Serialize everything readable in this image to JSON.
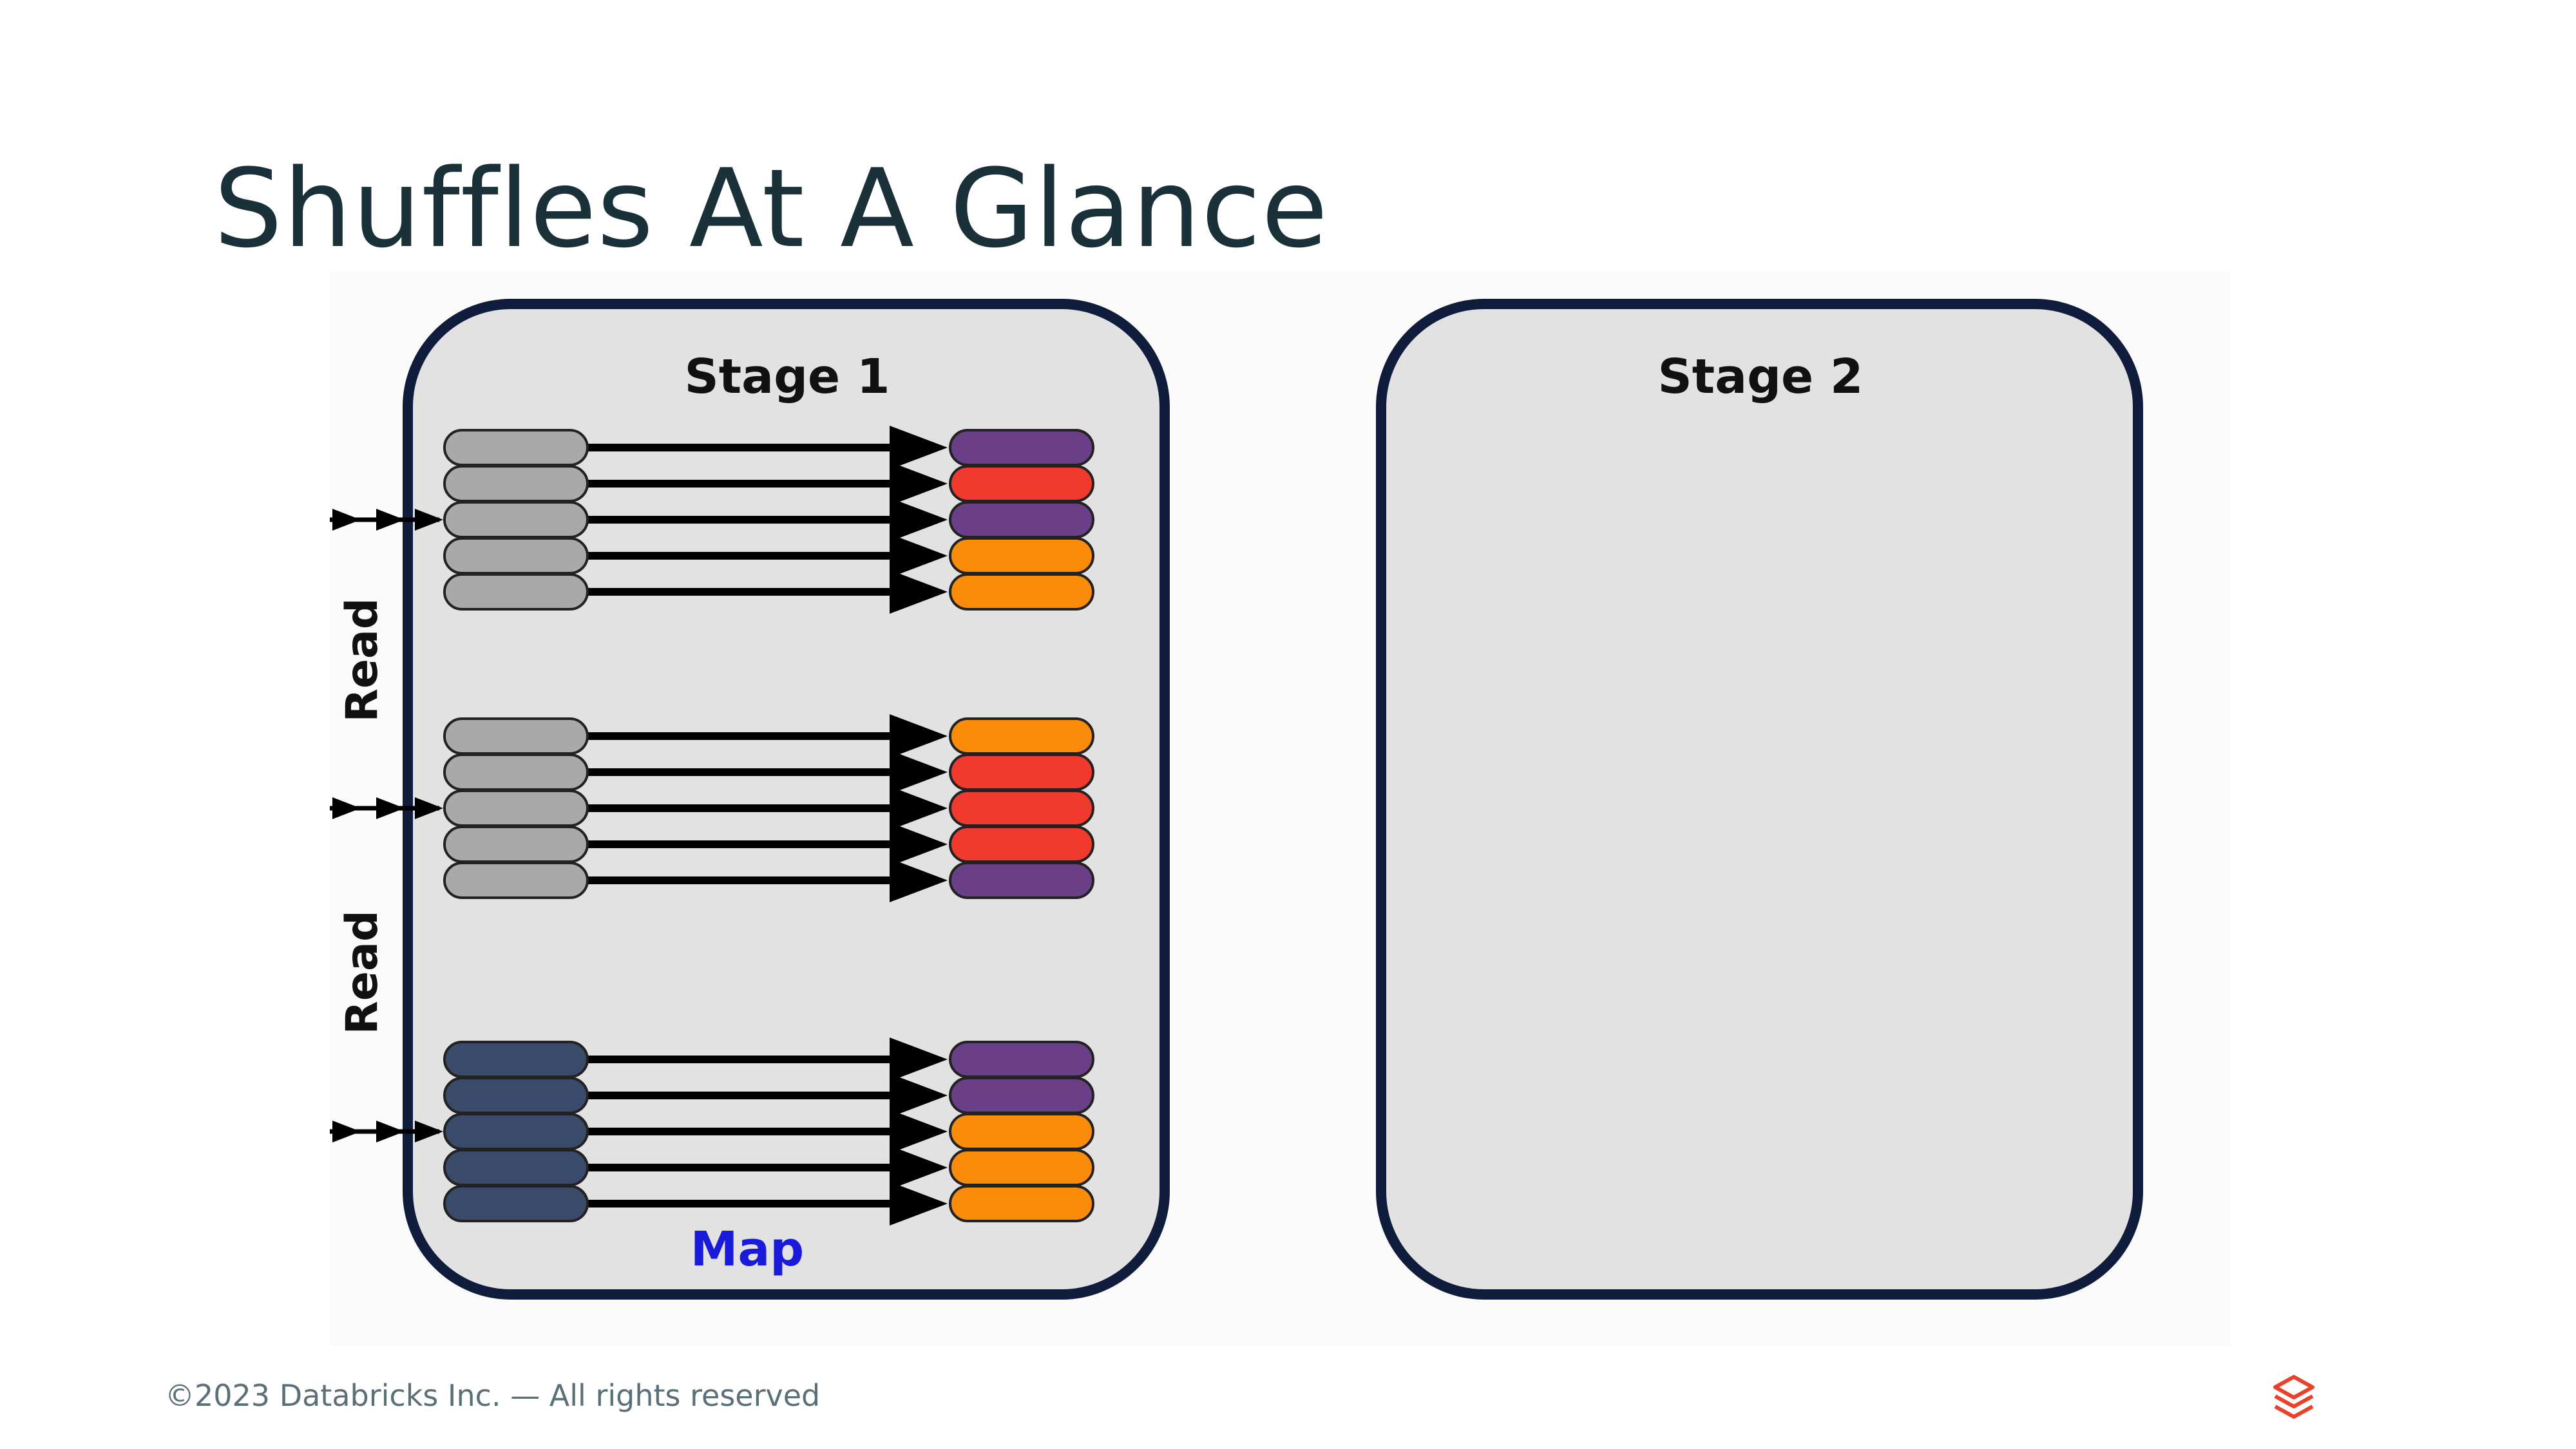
{
  "slide": {
    "title": "Shuffles At A Glance",
    "footer": "©2023 Databricks Inc. — All rights reserved"
  },
  "diagram": {
    "stage1_label": "Stage 1",
    "stage2_label": "Stage 2",
    "read_label_1": "Read",
    "read_label_2": "Read",
    "map_label": "Map",
    "groups": [
      {
        "input_color": "gray",
        "outputs": [
          "purple",
          "red",
          "purple",
          "orange",
          "orange"
        ]
      },
      {
        "input_color": "gray",
        "outputs": [
          "orange",
          "red",
          "red",
          "red",
          "purple"
        ]
      },
      {
        "input_color": "navy",
        "outputs": [
          "purple",
          "purple",
          "orange",
          "orange",
          "orange"
        ]
      }
    ],
    "colors": {
      "gray": "#a9a9a9",
      "navy": "#394a6b",
      "purple": "#6a3f87",
      "red": "#f03a2e",
      "orange": "#fb8c0a",
      "stage_fill": "#e2e2e2",
      "stage_border": "#0f1c3c",
      "map_text": "#1a1adb"
    }
  },
  "icons": {
    "logo": "databricks-logo-icon"
  }
}
